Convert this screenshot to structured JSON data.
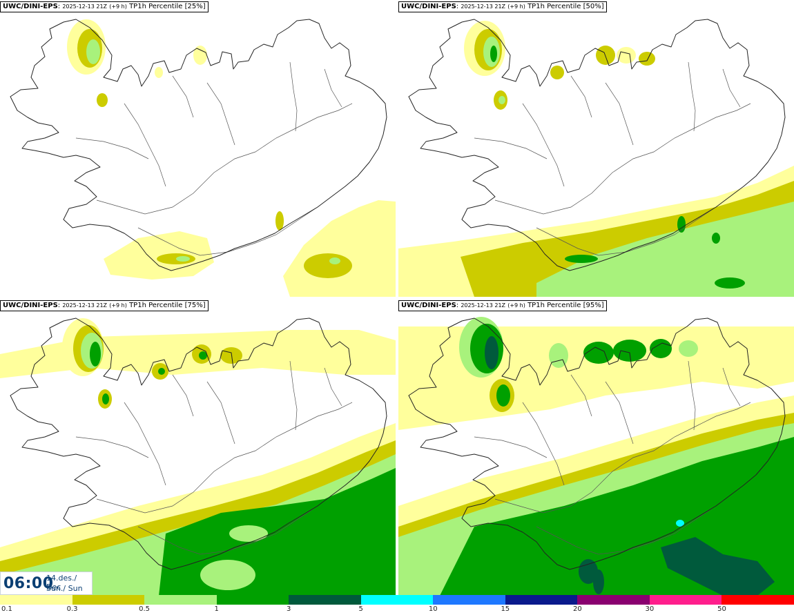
{
  "panels": [
    {
      "model": "UWC/DINI-EPS",
      "date": "2025-12-13 21Z",
      "lead": "(+9 h)",
      "variable": "TP1h Percentile",
      "percentile": "[25%]",
      "level": 0
    },
    {
      "model": "UWC/DINI-EPS",
      "date": "2025-12-13 21Z",
      "lead": "(+9 h)",
      "variable": "TP1h Percentile",
      "percentile": "[50%]",
      "level": 1
    },
    {
      "model": "UWC/DINI-EPS",
      "date": "2025-12-13 21Z",
      "lead": "(+9 h)",
      "variable": "TP1h Percentile",
      "percentile": "[75%]",
      "level": 2
    },
    {
      "model": "UWC/DINI-EPS",
      "date": "2025-12-13 21Z",
      "lead": "(+9 h)",
      "variable": "TP1h Percentile",
      "percentile": "[95%]",
      "level": 3
    }
  ],
  "time": {
    "hour": "06:00",
    "date_line1": "14.des./ Dec",
    "date_line2": "Sun./ Sun"
  },
  "legend": {
    "colors": [
      "#ffff9c",
      "#cccc00",
      "#a8f27c",
      "#00a000",
      "#005a3c",
      "#00ffff",
      "#1e78ff",
      "#0a1a8c",
      "#8a0070",
      "#ff1e8c",
      "#ff0000"
    ],
    "labels": [
      "0.1",
      "0.3",
      "0.5",
      "1",
      "3",
      "5",
      "10",
      "15",
      "20",
      "30",
      "50"
    ]
  }
}
